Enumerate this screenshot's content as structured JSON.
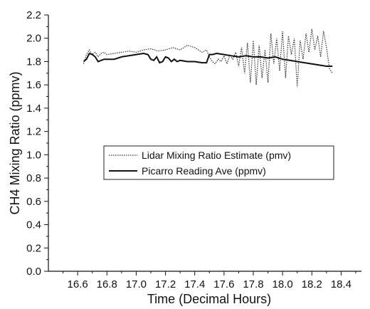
{
  "chart_data": {
    "type": "line",
    "xlabel": "Time (Decimal Hours)",
    "ylabel": "CH4 Mixing Ratio (ppmv)",
    "xlim": [
      16.4,
      18.5
    ],
    "ylim": [
      0.0,
      2.2
    ],
    "x_ticks": [
      16.6,
      16.8,
      17.0,
      17.2,
      17.4,
      17.6,
      17.8,
      18.0,
      18.2,
      18.4
    ],
    "x_tick_labels": [
      "16.6",
      "16.8",
      "17.0",
      "17.2",
      "17.4",
      "17.6",
      "17.8",
      "18.0",
      "18.2",
      "18.4"
    ],
    "y_ticks": [
      0.0,
      0.2,
      0.4,
      0.6,
      0.8,
      1.0,
      1.2,
      1.4,
      1.6,
      1.8,
      2.0,
      2.2
    ],
    "y_tick_labels": [
      "0.0",
      "0.2",
      "0.4",
      "0.6",
      "0.8",
      "1.0",
      "1.2",
      "1.4",
      "1.6",
      "1.8",
      "2.0",
      "2.2"
    ],
    "grid": false,
    "legend_position": "center",
    "series": [
      {
        "name": "Lidar Mixing Ratio Estimate (pmv)",
        "style": "dotted",
        "color": "#333333",
        "x": [
          16.64,
          16.66,
          16.68,
          16.7,
          16.72,
          16.74,
          16.76,
          16.78,
          16.8,
          16.85,
          16.9,
          16.95,
          17.0,
          17.05,
          17.1,
          17.15,
          17.2,
          17.25,
          17.3,
          17.35,
          17.4,
          17.45,
          17.48,
          17.5,
          17.52,
          17.54,
          17.56,
          17.58,
          17.6,
          17.62,
          17.64,
          17.66,
          17.68,
          17.7,
          17.72,
          17.74,
          17.76,
          17.78,
          17.8,
          17.82,
          17.84,
          17.86,
          17.88,
          17.9,
          17.92,
          17.94,
          17.96,
          17.98,
          18.0,
          18.02,
          18.04,
          18.06,
          18.08,
          18.1,
          18.12,
          18.14,
          18.16,
          18.18,
          18.2,
          18.22,
          18.24,
          18.26,
          18.28,
          18.3,
          18.32,
          18.34
        ],
        "y": [
          1.78,
          1.86,
          1.9,
          1.86,
          1.88,
          1.84,
          1.87,
          1.88,
          1.86,
          1.87,
          1.88,
          1.89,
          1.88,
          1.9,
          1.91,
          1.89,
          1.9,
          1.92,
          1.9,
          1.94,
          1.92,
          1.88,
          1.9,
          1.84,
          1.8,
          1.78,
          1.82,
          1.8,
          1.85,
          1.78,
          1.86,
          1.82,
          1.88,
          1.76,
          1.92,
          1.7,
          1.96,
          1.62,
          1.98,
          1.6,
          1.94,
          1.66,
          1.9,
          1.62,
          2.04,
          1.78,
          2.0,
          1.72,
          2.06,
          1.66,
          2.02,
          1.86,
          2.0,
          1.58,
          1.98,
          1.82,
          2.04,
          1.88,
          2.08,
          1.9,
          2.02,
          1.84,
          2.06,
          1.92,
          1.74,
          1.7
        ]
      },
      {
        "name": "Picarro Reading Ave (ppmv)",
        "style": "solid",
        "color": "#111111",
        "x": [
          16.64,
          16.66,
          16.68,
          16.7,
          16.72,
          16.74,
          16.76,
          16.78,
          16.8,
          16.85,
          16.9,
          16.95,
          17.0,
          17.05,
          17.08,
          17.1,
          17.12,
          17.14,
          17.16,
          17.18,
          17.2,
          17.22,
          17.24,
          17.26,
          17.28,
          17.3,
          17.35,
          17.4,
          17.45,
          17.48,
          17.5,
          17.52,
          17.55,
          17.6,
          17.65,
          17.7,
          17.75,
          17.8,
          17.85,
          17.9,
          17.95,
          18.0,
          18.05,
          18.1,
          18.15,
          18.2,
          18.25,
          18.3,
          18.34
        ],
        "y": [
          1.8,
          1.82,
          1.87,
          1.86,
          1.84,
          1.8,
          1.81,
          1.82,
          1.82,
          1.82,
          1.84,
          1.85,
          1.86,
          1.87,
          1.86,
          1.82,
          1.81,
          1.84,
          1.79,
          1.8,
          1.84,
          1.83,
          1.8,
          1.82,
          1.8,
          1.81,
          1.8,
          1.8,
          1.79,
          1.79,
          1.86,
          1.86,
          1.87,
          1.86,
          1.85,
          1.84,
          1.85,
          1.84,
          1.84,
          1.83,
          1.84,
          1.82,
          1.81,
          1.8,
          1.79,
          1.78,
          1.77,
          1.76,
          1.76
        ]
      }
    ]
  }
}
